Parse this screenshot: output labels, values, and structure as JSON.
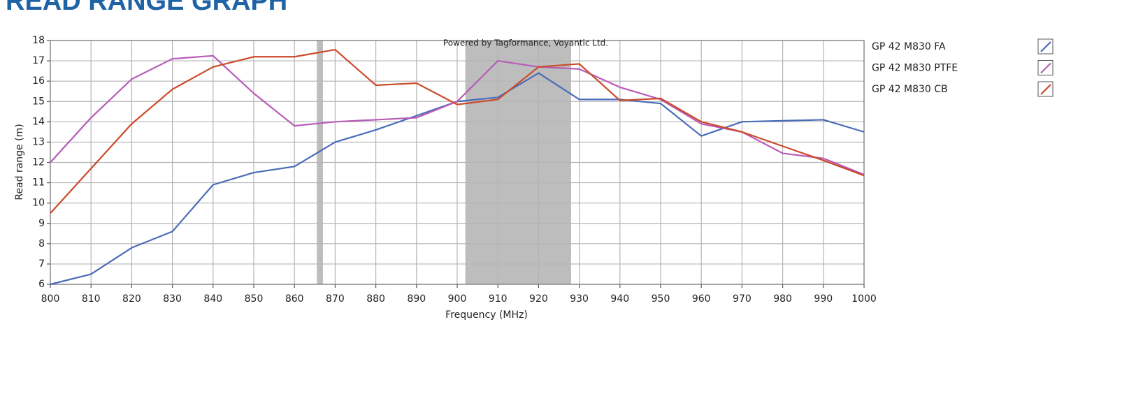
{
  "chart_data": {
    "type": "line",
    "title": "READ RANGE GRAPH",
    "annotation": "Powered by Tagformance, Voyantic Ltd.",
    "xlabel": "Frequency (MHz)",
    "ylabel": "Read range (m)",
    "x": [
      800,
      810,
      820,
      830,
      840,
      850,
      860,
      870,
      880,
      890,
      900,
      910,
      920,
      930,
      940,
      950,
      960,
      970,
      980,
      990,
      1000
    ],
    "series": [
      {
        "name": "GP 42 M830 FA",
        "color": "#4a6cb8",
        "values": [
          6.0,
          6.5,
          7.8,
          8.6,
          10.9,
          11.5,
          11.8,
          13.0,
          13.6,
          14.3,
          15.0,
          15.2,
          16.4,
          15.1,
          15.1,
          14.9,
          13.3,
          14.0,
          14.05,
          14.1,
          13.5
        ]
      },
      {
        "name": "GP 42 M830 PTFE",
        "color": "#b85cb8",
        "values": [
          12.0,
          14.2,
          16.1,
          17.1,
          17.25,
          15.4,
          13.8,
          14.0,
          14.1,
          14.2,
          15.0,
          17.0,
          16.7,
          16.6,
          15.7,
          15.1,
          13.9,
          13.5,
          12.45,
          12.2,
          11.4
        ]
      },
      {
        "name": "GP 42 M830 CB",
        "color": "#cc4a2a",
        "values": [
          9.5,
          11.7,
          13.9,
          15.6,
          16.7,
          17.2,
          17.2,
          17.55,
          15.8,
          15.9,
          14.85,
          15.1,
          16.7,
          16.85,
          15.05,
          15.15,
          14.0,
          13.5,
          12.8,
          12.1,
          11.35
        ]
      }
    ],
    "bands": [
      [
        865.5,
        867
      ],
      [
        902,
        928
      ]
    ],
    "band_color": "#bdbdbd",
    "xlim": [
      800,
      1000
    ],
    "xticks": [
      800,
      810,
      820,
      830,
      840,
      850,
      860,
      870,
      880,
      890,
      900,
      910,
      920,
      930,
      940,
      950,
      960,
      970,
      980,
      990,
      1000
    ],
    "ylim": [
      6,
      18
    ],
    "yticks": [
      6,
      7,
      8,
      9,
      10,
      11,
      12,
      13,
      14,
      15,
      16,
      17,
      18
    ],
    "grid": true,
    "legend": "right"
  }
}
